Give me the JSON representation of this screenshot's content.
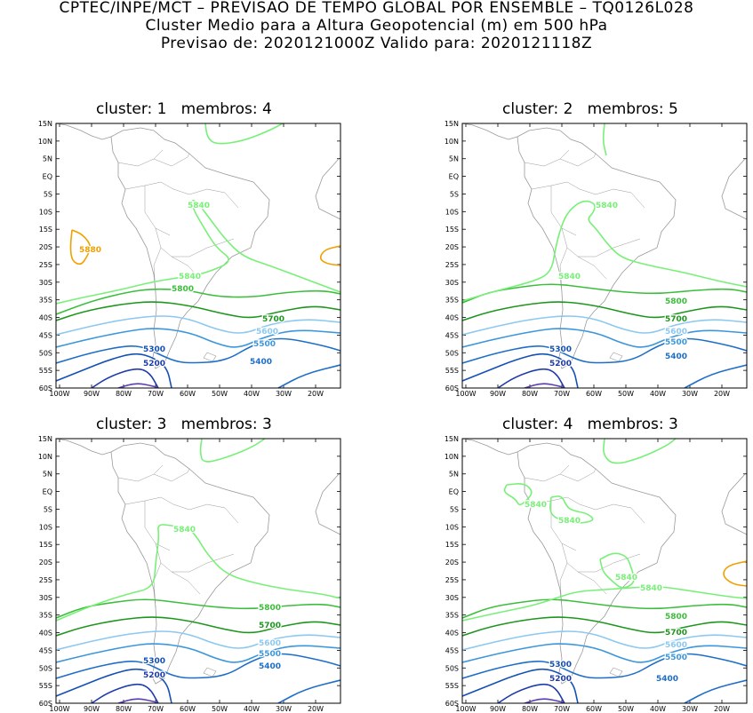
{
  "header": {
    "line1": "CPTEC/INPE/MCT – PREVISAO DE TEMPO GLOBAL POR ENSEMBLE – TQ0126L028",
    "line2": "Cluster Medio para a Altura Geopotencial (m) em 500 hPa",
    "line3": "Previsao de: 2020121000Z    Valido para: 2020121118Z"
  },
  "panels": [
    {
      "title": "cluster: 1   membros: 4",
      "labels": [
        "5880",
        "5840",
        "5840",
        "5800",
        "5700",
        "5600",
        "5500",
        "5400",
        "5300",
        "5200"
      ]
    },
    {
      "title": "cluster: 2   membros: 5",
      "labels": [
        "5840",
        "5840",
        "5800",
        "5700",
        "5600",
        "5500",
        "5400",
        "5300",
        "5200"
      ]
    },
    {
      "title": "cluster: 3   membros: 3",
      "labels": [
        "5840",
        "5800",
        "5700",
        "5600",
        "5500",
        "5400",
        "5300",
        "5200"
      ]
    },
    {
      "title": "cluster: 4   membros: 3",
      "labels": [
        "5840",
        "5840",
        "5840",
        "5840",
        "5800",
        "5700",
        "5600",
        "5500",
        "5400",
        "5300",
        "5200"
      ]
    }
  ],
  "axes": {
    "lat_ticks": [
      "15N",
      "10N",
      "5N",
      "EQ",
      "5S",
      "10S",
      "15S",
      "20S",
      "25S",
      "30S",
      "35S",
      "40S",
      "45S",
      "50S",
      "55S",
      "60S"
    ],
    "lon_ticks": [
      "100W",
      "90W",
      "80W",
      "70W",
      "60W",
      "50W",
      "40W",
      "30W",
      "20W"
    ]
  },
  "colors": {
    "c5880": "#f0a000",
    "c5840": "#78f078",
    "c5800": "#3cbe3c",
    "c5700": "#1e961e",
    "c5600": "#8cc8f0",
    "c5500": "#3c96dc",
    "c5400": "#1e6ec8",
    "c5300": "#1450b4",
    "c5200": "#1e3caa",
    "c5100": "#5a3cb4",
    "coast": "#9a9a9a"
  }
}
